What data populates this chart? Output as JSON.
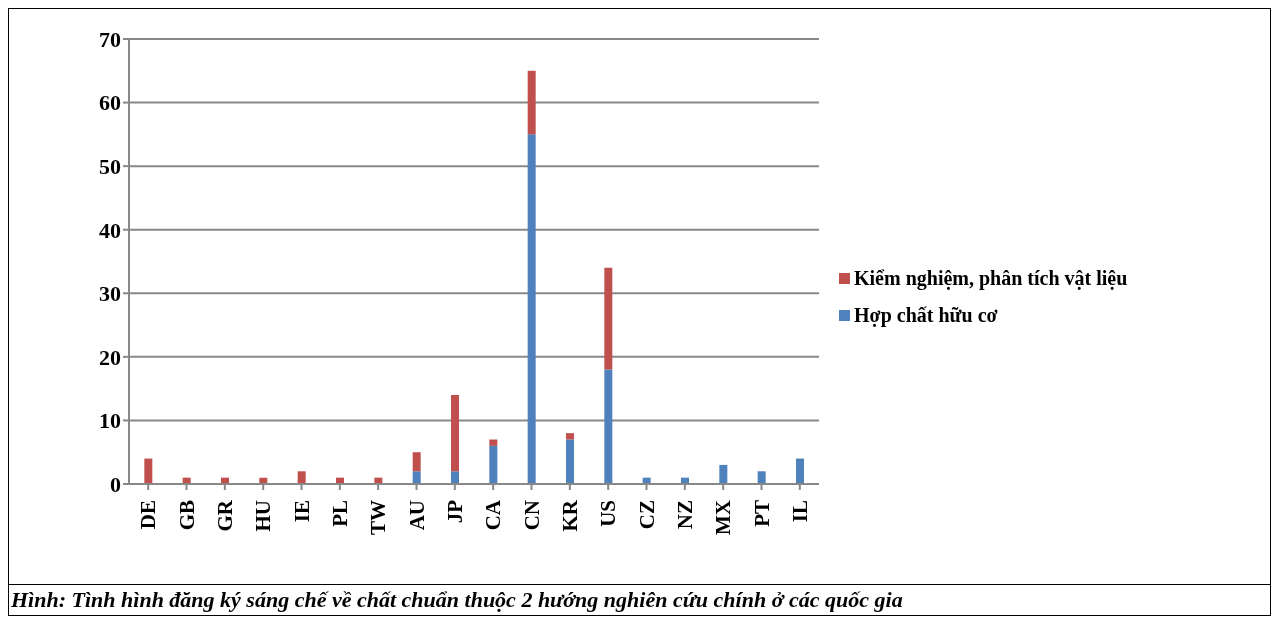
{
  "chart_data": {
    "type": "bar",
    "stacked": true,
    "categories": [
      "DE",
      "GB",
      "GR",
      "HU",
      "IE",
      "PL",
      "TW",
      "AU",
      "JP",
      "CA",
      "CN",
      "KR",
      "US",
      "CZ",
      "NZ",
      "MX",
      "PT",
      "IL"
    ],
    "series": [
      {
        "name": "Hợp chất hữu cơ",
        "color": "#4f81bd",
        "values": [
          0,
          0,
          0,
          0,
          0,
          0,
          0,
          2,
          2,
          6,
          55,
          7,
          18,
          1,
          1,
          3,
          2,
          4
        ]
      },
      {
        "name": "Kiểm nghiệm, phân tích vật liệu",
        "color": "#c0504d",
        "values": [
          4,
          1,
          1,
          1,
          2,
          1,
          1,
          3,
          12,
          1,
          10,
          1,
          16,
          0,
          0,
          0,
          0,
          0
        ]
      }
    ],
    "ylim": [
      0,
      70
    ],
    "yticks": [
      0,
      10,
      20,
      30,
      40,
      50,
      60,
      70
    ],
    "grid": "y",
    "legend": "right",
    "annotations": [
      "Hình: Tình hình đăng ký sáng chế về chất chuẩn thuộc 2 hướng nghiên cứu chính ở các quốc gia"
    ]
  }
}
